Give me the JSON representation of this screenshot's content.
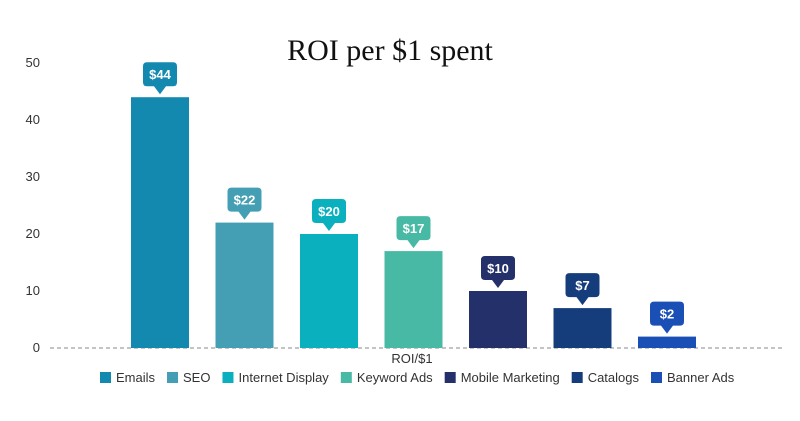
{
  "chart_data": {
    "type": "bar",
    "title": "ROI per $1 spent",
    "xlabel": "ROI/$1",
    "ylabel": "",
    "ylim": [
      0,
      50
    ],
    "yticks": [
      0,
      10,
      20,
      30,
      40,
      50
    ],
    "grid": false,
    "legend_position": "bottom",
    "categories": [
      "ROI/$1"
    ],
    "series": [
      {
        "name": "Emails",
        "values": [
          44
        ],
        "label": "$44",
        "color": "#1489b0"
      },
      {
        "name": "SEO",
        "values": [
          22
        ],
        "label": "$22",
        "color": "#449fb5"
      },
      {
        "name": "Internet Display",
        "values": [
          20
        ],
        "label": "$20",
        "color": "#0ab0bd"
      },
      {
        "name": "Keyword Ads",
        "values": [
          17
        ],
        "label": "$17",
        "color": "#48b9a5"
      },
      {
        "name": "Mobile Marketing",
        "values": [
          10
        ],
        "label": "$10",
        "color": "#233069"
      },
      {
        "name": "Catalogs",
        "values": [
          7
        ],
        "label": "$7",
        "color": "#153d7c"
      },
      {
        "name": "Banner Ads",
        "values": [
          2
        ],
        "label": "$2",
        "color": "#1a4fb5"
      }
    ]
  }
}
